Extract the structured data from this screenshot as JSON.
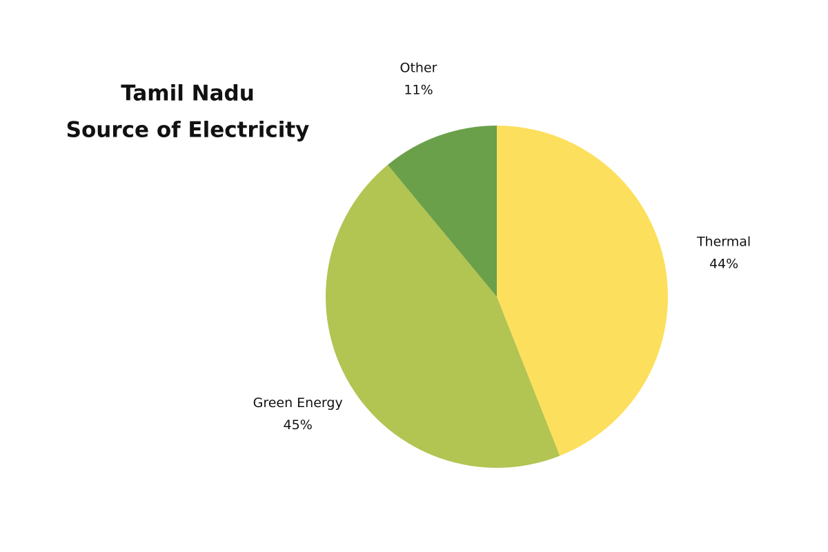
{
  "chart_data": {
    "type": "pie",
    "title": [
      "Tamil Nadu",
      "Source of Electricity"
    ],
    "categories": [
      "Thermal",
      "Green Energy",
      "Other"
    ],
    "values": [
      44,
      45,
      11
    ],
    "value_labels": [
      "44%",
      "45%",
      "11%"
    ],
    "colors": [
      "#fddf5e",
      "#b2c452",
      "#6ba04a"
    ]
  }
}
